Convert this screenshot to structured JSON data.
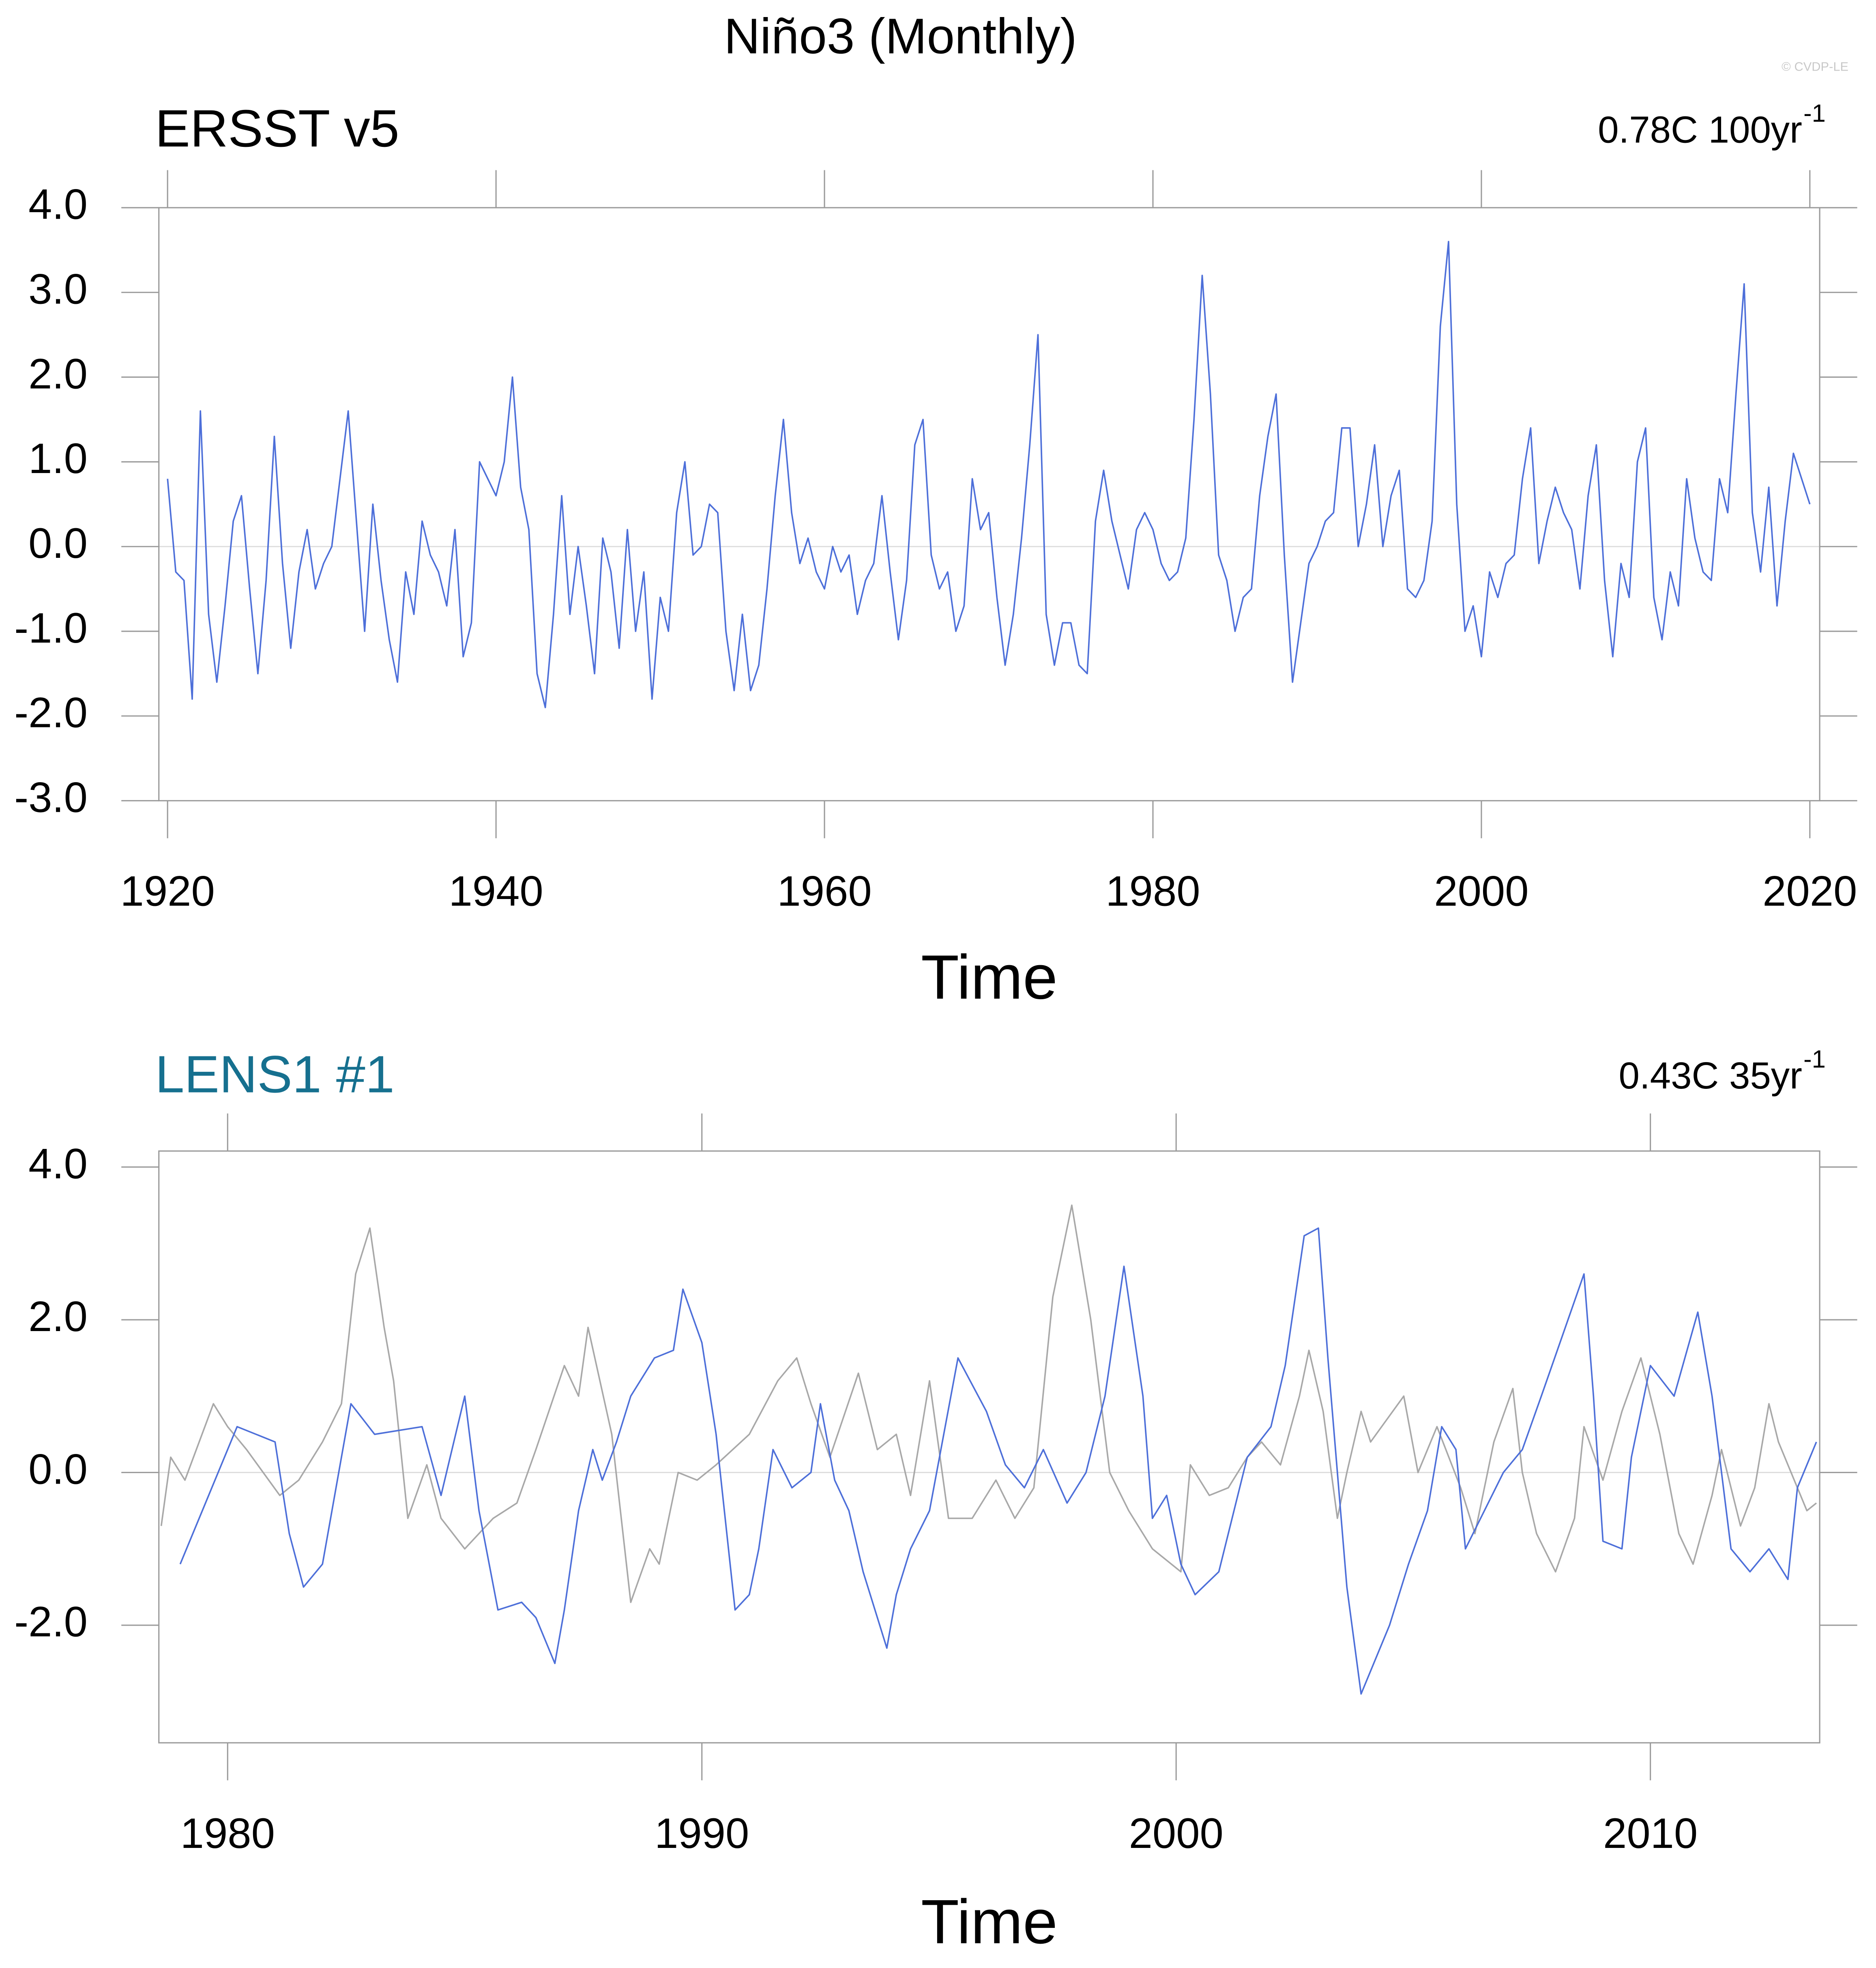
{
  "title": "Niño3 (Monthly)",
  "watermark": "© CVDP-LE",
  "chart_data": [
    {
      "type": "line",
      "subtitle": "ERSST v5",
      "subtitle_color": "#000000",
      "annotation": {
        "text": "0.78C 100yr",
        "superscript": "-1"
      },
      "xlabel": "Time",
      "xlim": [
        1919.47,
        2020.6
      ],
      "ylim": [
        -3,
        4
      ],
      "xticks": [
        1920,
        1940,
        1960,
        1980,
        2000,
        2020
      ],
      "yticks": [
        {
          "value": -3,
          "label": "-3.0"
        },
        {
          "value": -2,
          "label": "-2.0"
        },
        {
          "value": -1,
          "label": "-1.0"
        },
        {
          "value": 0,
          "label": "0.0"
        },
        {
          "value": 1,
          "label": "1.0"
        },
        {
          "value": 2,
          "label": "2.0"
        },
        {
          "value": 3,
          "label": "3.0"
        },
        {
          "value": 4,
          "label": "4.0"
        }
      ],
      "zero_line": true,
      "series": [
        {
          "color": "#4d6fd9",
          "x": [
            1920,
            1920.5,
            1921,
            1921.5,
            1922,
            1922.5,
            1923,
            1923.5,
            1924,
            1924.5,
            1925,
            1925.5,
            1926,
            1926.5,
            1927,
            1927.5,
            1928,
            1928.5,
            1929,
            1929.5,
            1930,
            1930.5,
            1931,
            1931.5,
            1932,
            1932.5,
            1933,
            1933.5,
            1934,
            1934.5,
            1935,
            1935.5,
            1936,
            1936.5,
            1937,
            1937.5,
            1938,
            1938.5,
            1939,
            1939.5,
            1940,
            1940.5,
            1941,
            1941.5,
            1942,
            1942.5,
            1943,
            1943.5,
            1944,
            1944.5,
            1945,
            1945.5,
            1946,
            1946.5,
            1947,
            1947.5,
            1948,
            1948.5,
            1949,
            1949.5,
            1950,
            1950.5,
            1951,
            1951.5,
            1952,
            1952.5,
            1953,
            1953.5,
            1954,
            1954.5,
            1955,
            1955.5,
            1956,
            1956.5,
            1957,
            1957.5,
            1958,
            1958.5,
            1959,
            1959.5,
            1960,
            1960.5,
            1961,
            1961.5,
            1962,
            1962.5,
            1963,
            1963.5,
            1964,
            1964.5,
            1965,
            1965.5,
            1966,
            1966.5,
            1967,
            1967.5,
            1968,
            1968.5,
            1969,
            1969.5,
            1970,
            1970.5,
            1971,
            1971.5,
            1972,
            1972.5,
            1973,
            1973.5,
            1974,
            1974.5,
            1975,
            1975.5,
            1976,
            1976.5,
            1977,
            1977.5,
            1978,
            1978.5,
            1979,
            1979.5,
            1980,
            1980.5,
            1981,
            1981.5,
            1982,
            1982.5,
            1983,
            1983.5,
            1984,
            1984.5,
            1985,
            1985.5,
            1986,
            1986.5,
            1987,
            1987.5,
            1988,
            1988.5,
            1989,
            1989.5,
            1990,
            1990.5,
            1991,
            1991.5,
            1992,
            1992.5,
            1993,
            1993.5,
            1994,
            1994.5,
            1995,
            1995.5,
            1996,
            1996.5,
            1997,
            1997.5,
            1998,
            1998.5,
            1999,
            1999.5,
            2000,
            2000.5,
            2001,
            2001.5,
            2002,
            2002.5,
            2003,
            2003.5,
            2004,
            2004.5,
            2005,
            2005.5,
            2006,
            2006.5,
            2007,
            2007.5,
            2008,
            2008.5,
            2009,
            2009.5,
            2010,
            2010.5,
            2011,
            2011.5,
            2012,
            2012.5,
            2013,
            2013.5,
            2014,
            2014.5,
            2015,
            2015.5,
            2016,
            2016.5,
            2017,
            2017.5,
            2018,
            2018.5,
            2019,
            2019.5,
            2020
          ],
          "values": [
            0.8,
            -0.3,
            -0.4,
            -1.8,
            1.6,
            -0.8,
            -1.6,
            -0.7,
            0.3,
            0.6,
            -0.5,
            -1.5,
            -0.4,
            1.3,
            -0.2,
            -1.2,
            -0.3,
            0.2,
            -0.5,
            -0.2,
            0.0,
            0.8,
            1.6,
            0.3,
            -1.0,
            0.5,
            -0.4,
            -1.1,
            -1.6,
            -0.3,
            -0.8,
            0.3,
            -0.1,
            -0.3,
            -0.7,
            0.2,
            -1.3,
            -0.9,
            1.0,
            0.8,
            0.6,
            1.0,
            2.0,
            0.7,
            0.2,
            -1.5,
            -1.9,
            -0.8,
            0.6,
            -0.8,
            0.0,
            -0.7,
            -1.5,
            0.1,
            -0.3,
            -1.2,
            0.2,
            -1.0,
            -0.3,
            -1.8,
            -0.6,
            -1.0,
            0.4,
            1.0,
            -0.1,
            0.0,
            0.5,
            0.4,
            -1.0,
            -1.7,
            -0.8,
            -1.7,
            -1.4,
            -0.5,
            0.6,
            1.5,
            0.4,
            -0.2,
            0.1,
            -0.3,
            -0.5,
            0.0,
            -0.3,
            -0.1,
            -0.8,
            -0.4,
            -0.2,
            0.6,
            -0.3,
            -1.1,
            -0.4,
            1.2,
            1.5,
            -0.1,
            -0.5,
            -0.3,
            -1.0,
            -0.7,
            0.8,
            0.2,
            0.4,
            -0.6,
            -1.4,
            -0.8,
            0.1,
            1.2,
            2.5,
            -0.8,
            -1.4,
            -0.9,
            -0.9,
            -1.4,
            -1.5,
            0.3,
            0.9,
            0.3,
            -0.1,
            -0.5,
            0.2,
            0.4,
            0.2,
            -0.2,
            -0.4,
            -0.3,
            0.1,
            1.5,
            3.2,
            1.8,
            -0.1,
            -0.4,
            -1.0,
            -0.6,
            -0.5,
            0.6,
            1.3,
            1.8,
            -0.1,
            -1.6,
            -0.9,
            -0.2,
            0.0,
            0.3,
            0.4,
            1.4,
            1.4,
            0.0,
            0.5,
            1.2,
            0.0,
            0.6,
            0.9,
            -0.5,
            -0.6,
            -0.4,
            0.3,
            2.6,
            3.6,
            0.5,
            -1.0,
            -0.7,
            -1.3,
            -0.3,
            -0.6,
            -0.2,
            -0.1,
            0.8,
            1.4,
            -0.2,
            0.3,
            0.7,
            0.4,
            0.2,
            -0.5,
            0.6,
            1.2,
            -0.4,
            -1.3,
            -0.2,
            -0.6,
            1.0,
            1.4,
            -0.6,
            -1.1,
            -0.3,
            -0.7,
            0.8,
            0.1,
            -0.3,
            -0.4,
            0.8,
            0.4,
            1.8,
            3.1,
            0.4,
            -0.3,
            0.7,
            -0.7,
            0.3,
            1.1,
            0.8,
            0.5
          ]
        }
      ]
    },
    {
      "type": "line",
      "subtitle": "LENS1 #1",
      "subtitle_color": "#16708f",
      "annotation": {
        "text": "0.43C 35yr",
        "superscript": "-1"
      },
      "xlabel": "Time",
      "xlim": [
        1978.55,
        2013.57
      ],
      "ylim": [
        -3.54,
        4.21
      ],
      "xticks": [
        1980,
        1990,
        2000,
        2010
      ],
      "yticks": [
        {
          "value": -2,
          "label": "-2.0"
        },
        {
          "value": 0,
          "label": "0.0"
        },
        {
          "value": 2,
          "label": "2.0"
        },
        {
          "value": 4,
          "label": "4.0"
        }
      ],
      "zero_line": true,
      "series": [
        {
          "color": "#a8a8a8",
          "x": [
            1978.6,
            1978.8,
            1979.1,
            1979.7,
            1980.0,
            1980.4,
            1981.1,
            1981.5,
            1982.0,
            1982.4,
            1982.7,
            1983.0,
            1983.3,
            1983.5,
            1983.8,
            1984.2,
            1984.5,
            1985.0,
            1985.6,
            1986.1,
            1986.5,
            1987.1,
            1987.4,
            1987.6,
            1988.1,
            1988.5,
            1988.9,
            1989.1,
            1989.5,
            1989.9,
            1990.3,
            1991.0,
            1991.6,
            1992.0,
            1992.3,
            1992.7,
            1993.3,
            1993.7,
            1994.1,
            1994.4,
            1994.8,
            1995.2,
            1995.7,
            1996.2,
            1996.6,
            1997.0,
            1997.4,
            1997.8,
            1998.2,
            1998.6,
            1999.0,
            1999.5,
            2000.1,
            2000.3,
            2000.7,
            2001.1,
            2001.5,
            2001.8,
            2002.2,
            2002.6,
            2002.8,
            2003.1,
            2003.4,
            2003.6,
            2003.9,
            2004.1,
            2004.8,
            2005.1,
            2005.5,
            2006.0,
            2006.3,
            2006.7,
            2007.1,
            2007.3,
            2007.6,
            2008.0,
            2008.4,
            2008.6,
            2009.0,
            2009.4,
            2009.8,
            2010.2,
            2010.6,
            2010.9,
            2011.3,
            2011.5,
            2011.9,
            2012.2,
            2012.5,
            2012.7,
            2013.3,
            2013.5
          ],
          "values": [
            -0.7,
            0.2,
            -0.1,
            0.9,
            0.6,
            0.3,
            -0.3,
            -0.1,
            0.4,
            0.9,
            2.6,
            3.2,
            1.9,
            1.2,
            -0.6,
            0.1,
            -0.6,
            -1.0,
            -0.6,
            -0.4,
            0.3,
            1.4,
            1.0,
            1.9,
            0.5,
            -1.7,
            -1.0,
            -1.2,
            0.0,
            -0.1,
            0.1,
            0.5,
            1.2,
            1.5,
            0.9,
            0.2,
            1.3,
            0.3,
            0.5,
            -0.3,
            1.2,
            -0.6,
            -0.6,
            -0.1,
            -0.6,
            -0.2,
            2.3,
            3.5,
            2.0,
            0.0,
            -0.5,
            -1.0,
            -1.3,
            0.1,
            -0.3,
            -0.2,
            0.2,
            0.4,
            0.1,
            1.0,
            1.6,
            0.8,
            -0.6,
            0.0,
            0.8,
            0.4,
            1.0,
            0.0,
            0.6,
            -0.2,
            -0.8,
            0.4,
            1.1,
            0.0,
            -0.8,
            -1.3,
            -0.6,
            0.6,
            -0.1,
            0.8,
            1.5,
            0.5,
            -0.8,
            -1.2,
            -0.3,
            0.3,
            -0.7,
            -0.2,
            0.9,
            0.4,
            -0.5,
            -0.4
          ]
        },
        {
          "color": "#4d6fd9",
          "x": [
            1979.0,
            1980.2,
            1981.0,
            1981.3,
            1981.6,
            1982.0,
            1982.6,
            1983.1,
            1984.1,
            1984.5,
            1985.0,
            1985.3,
            1985.7,
            1986.2,
            1986.5,
            1986.9,
            1987.1,
            1987.4,
            1987.7,
            1987.9,
            1988.2,
            1988.5,
            1989.0,
            1989.4,
            1989.6,
            1990.0,
            1990.3,
            1990.7,
            1991.0,
            1991.2,
            1991.5,
            1991.9,
            1992.3,
            1992.5,
            1992.8,
            1993.1,
            1993.4,
            1993.9,
            1994.1,
            1994.4,
            1994.8,
            1995.4,
            1996.0,
            1996.4,
            1996.8,
            1997.2,
            1997.7,
            1998.1,
            1998.5,
            1998.9,
            1999.3,
            1999.5,
            1999.8,
            2000.1,
            2000.4,
            2000.9,
            2001.5,
            2002.0,
            2002.3,
            2002.7,
            2003.0,
            2003.2,
            2003.6,
            2003.9,
            2004.1,
            2004.5,
            2004.9,
            2005.3,
            2005.6,
            2005.9,
            2006.1,
            2006.5,
            2006.9,
            2007.3,
            2007.7,
            2008.6,
            2008.8,
            2009.0,
            2009.4,
            2009.6,
            2010.0,
            2010.5,
            2011.0,
            2011.3,
            2011.7,
            2012.1,
            2012.5,
            2012.9,
            2013.1,
            2013.5
          ],
          "values": [
            -1.2,
            0.6,
            0.4,
            -0.8,
            -1.5,
            -1.2,
            0.9,
            0.5,
            0.6,
            -0.3,
            1.0,
            -0.5,
            -1.8,
            -1.7,
            -1.9,
            -2.5,
            -1.8,
            -0.5,
            0.3,
            -0.1,
            0.4,
            1.0,
            1.5,
            1.6,
            2.4,
            1.7,
            0.5,
            -1.8,
            -1.6,
            -1.0,
            0.3,
            -0.2,
            0.0,
            0.9,
            -0.1,
            -0.5,
            -1.3,
            -2.3,
            -1.6,
            -1.0,
            -0.5,
            1.5,
            0.8,
            0.1,
            -0.2,
            0.3,
            -0.4,
            0.0,
            1.0,
            2.7,
            1.0,
            -0.6,
            -0.3,
            -1.2,
            -1.6,
            -1.3,
            0.2,
            0.6,
            1.4,
            3.1,
            3.2,
            1.5,
            -1.5,
            -2.9,
            -2.6,
            -2.0,
            -1.2,
            -0.5,
            0.6,
            0.3,
            -1.0,
            -0.5,
            0.0,
            0.3,
            1.0,
            2.6,
            1.0,
            -0.9,
            -1.0,
            0.2,
            1.4,
            1.0,
            2.1,
            1.0,
            -1.0,
            -1.3,
            -1.0,
            -1.4,
            -0.2,
            0.4
          ]
        }
      ]
    }
  ]
}
